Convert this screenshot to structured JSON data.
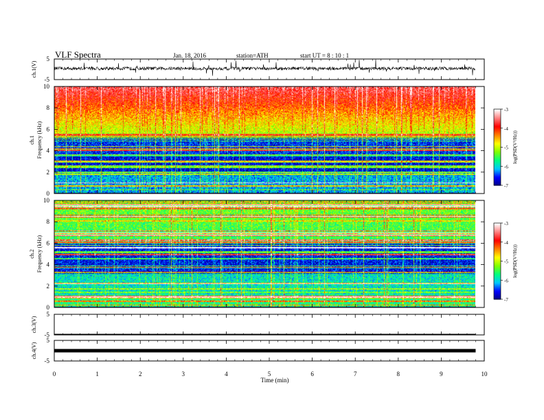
{
  "header": {
    "title": "VLF  Spectra",
    "date": "Jan. 18, 2016",
    "station": "station=ATH",
    "start": "start  UT  =   8  : 10 : 1"
  },
  "chart_data": {
    "type": "heatmap",
    "xlabel": "Time  (min)",
    "xlim": [
      0,
      10
    ],
    "xticks": [
      "0",
      "1",
      "2",
      "3",
      "4",
      "5",
      "6",
      "7",
      "8",
      "9",
      "10"
    ],
    "data_end_min": 9.8,
    "panels": [
      {
        "kind": "waveform",
        "ylabel": "ch.1(V)",
        "ylim": [
          -5,
          5
        ],
        "yticks": [
          "5",
          "-5"
        ]
      },
      {
        "kind": "spectrogram",
        "ylabel": "ch.1",
        "ylabel2": "Frequency  (kHz)",
        "ylim": [
          0,
          10
        ],
        "yticks": [
          "0",
          "2",
          "4",
          "6",
          "8",
          "10"
        ]
      },
      {
        "kind": "spectrogram",
        "ylabel": "ch.2",
        "ylabel2": "Frequency  (kHz)",
        "ylim": [
          0,
          10
        ],
        "yticks": [
          "0",
          "2",
          "4",
          "6",
          "8",
          "10"
        ]
      },
      {
        "kind": "waveform",
        "ylabel": "ch.3(V)",
        "ylim": [
          -5,
          5
        ],
        "yticks": [
          "5",
          "-5"
        ]
      },
      {
        "kind": "waveform",
        "ylabel": "ch.4(V)",
        "ylim": [
          -5,
          5
        ],
        "yticks": [
          "5",
          "-5"
        ]
      }
    ],
    "colorbar": {
      "label": "log(PSD(V²/Hz))",
      "range": [
        -7,
        -3
      ],
      "ticks": [
        "-3",
        "-4",
        "-5",
        "-6",
        "-7"
      ],
      "colors": [
        "#000080",
        "#0000ff",
        "#00c8ff",
        "#00ff80",
        "#80ff00",
        "#ffff00",
        "#ff8000",
        "#ff0000",
        "#ff8080",
        "#ffffff"
      ]
    }
  }
}
